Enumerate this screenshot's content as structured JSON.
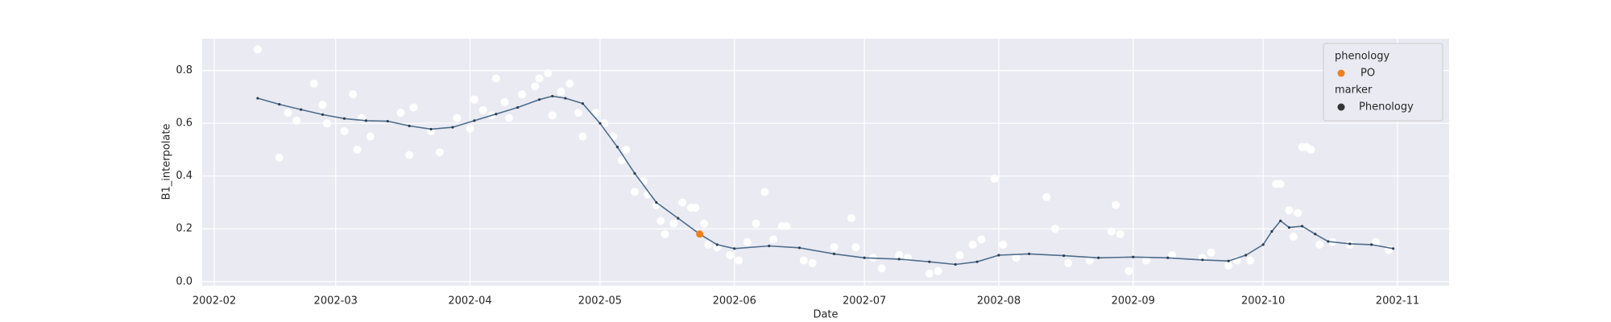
{
  "chart_data": {
    "type": "scatter",
    "xlabel": "Date",
    "ylabel": "B1_interpolate",
    "xlim": [
      29.2,
      316.9
    ],
    "xticks": [
      {
        "value": 32,
        "label": "2002-02"
      },
      {
        "value": 60,
        "label": "2002-03"
      },
      {
        "value": 91,
        "label": "2002-04"
      },
      {
        "value": 121,
        "label": "2002-05"
      },
      {
        "value": 152,
        "label": "2002-06"
      },
      {
        "value": 182,
        "label": "2002-07"
      },
      {
        "value": 213,
        "label": "2002-08"
      },
      {
        "value": 244,
        "label": "2002-09"
      },
      {
        "value": 274,
        "label": "2002-10"
      },
      {
        "value": 305,
        "label": "2002-11"
      }
    ],
    "ylim": [
      -0.016,
      0.921
    ],
    "yticks": [
      {
        "value": 0,
        "label": "0.0"
      },
      0.2,
      0.4,
      0.6,
      0.8
    ],
    "grid": true,
    "series": [
      {
        "type": "scatter",
        "color": "#ffffff",
        "x": [
          42,
          47,
          49,
          51,
          55,
          57,
          58,
          62,
          64,
          65,
          66,
          68,
          75,
          77,
          78,
          82,
          84,
          88,
          91,
          92,
          94,
          96,
          97,
          99,
          100,
          103,
          106,
          107,
          109,
          110,
          112,
          114,
          116,
          117,
          120,
          122,
          124,
          126,
          127,
          129,
          131,
          132,
          134,
          135,
          136,
          138,
          140,
          142,
          143,
          145,
          146,
          148,
          151,
          153,
          155,
          157,
          159,
          161,
          163,
          164,
          168,
          170,
          175,
          179,
          180,
          184,
          186,
          190,
          192,
          197,
          199,
          204,
          207,
          209,
          212,
          214,
          217,
          224,
          226,
          229,
          234,
          239,
          240,
          241,
          243,
          247,
          253,
          260,
          262,
          266,
          268,
          271,
          277,
          278,
          280,
          281,
          282,
          283,
          284,
          285,
          287,
          290,
          294,
          300,
          303
        ],
        "values": [
          0.88,
          0.47,
          0.64,
          0.61,
          0.75,
          0.67,
          0.6,
          0.57,
          0.71,
          0.5,
          0.62,
          0.55,
          0.64,
          0.48,
          0.66,
          0.57,
          0.49,
          0.62,
          0.58,
          0.69,
          0.65,
          0.63,
          0.77,
          0.68,
          0.62,
          0.71,
          0.74,
          0.77,
          0.79,
          0.63,
          0.72,
          0.75,
          0.64,
          0.55,
          0.64,
          0.6,
          0.55,
          0.46,
          0.5,
          0.34,
          0.38,
          0.33,
          0.29,
          0.23,
          0.18,
          0.22,
          0.3,
          0.28,
          0.28,
          0.22,
          0.14,
          0.13,
          0.1,
          0.08,
          0.15,
          0.22,
          0.34,
          0.16,
          0.21,
          0.21,
          0.08,
          0.07,
          0.13,
          0.24,
          0.13,
          0.09,
          0.05,
          0.1,
          0.09,
          0.03,
          0.04,
          0.1,
          0.14,
          0.16,
          0.39,
          0.14,
          0.09,
          0.32,
          0.2,
          0.07,
          0.08,
          0.19,
          0.29,
          0.18,
          0.04,
          0.08,
          0.1,
          0.09,
          0.11,
          0.06,
          0.08,
          0.08,
          0.37,
          0.37,
          0.27,
          0.17,
          0.26,
          0.51,
          0.51,
          0.5,
          0.14,
          0.15,
          0.14,
          0.15,
          0.12
        ]
      },
      {
        "type": "line",
        "color": "#4e6d8c",
        "x": [
          42,
          47,
          52,
          57,
          62,
          67,
          72,
          77,
          82,
          87,
          92,
          97,
          102,
          107,
          110,
          113,
          117,
          121,
          125,
          129,
          134,
          139,
          144,
          148,
          152,
          160,
          167,
          175,
          182,
          190,
          197,
          203,
          208,
          213,
          220,
          228,
          236,
          244,
          252,
          260,
          266,
          270,
          274,
          276,
          278,
          280,
          283,
          286,
          289,
          294,
          299,
          304
        ],
        "values": [
          0.695,
          0.672,
          0.652,
          0.633,
          0.618,
          0.61,
          0.608,
          0.59,
          0.578,
          0.585,
          0.61,
          0.635,
          0.66,
          0.69,
          0.703,
          0.695,
          0.675,
          0.6,
          0.51,
          0.41,
          0.3,
          0.24,
          0.18,
          0.14,
          0.125,
          0.135,
          0.128,
          0.105,
          0.09,
          0.085,
          0.075,
          0.065,
          0.075,
          0.1,
          0.105,
          0.098,
          0.09,
          0.093,
          0.09,
          0.082,
          0.078,
          0.1,
          0.14,
          0.19,
          0.23,
          0.205,
          0.21,
          0.18,
          0.152,
          0.143,
          0.14,
          0.125
        ]
      },
      {
        "type": "scatter",
        "color": "#f07f1d",
        "x": [
          144
        ],
        "values": [
          0.18
        ]
      }
    ],
    "legend": {
      "location": "upper right",
      "groups": [
        {
          "title": "phenology",
          "items": [
            {
              "label": "PO",
              "color": "#f07f1d"
            }
          ]
        },
        {
          "title": "marker",
          "items": [
            {
              "label": "Phenology",
              "color": "#333333"
            }
          ]
        }
      ]
    }
  }
}
